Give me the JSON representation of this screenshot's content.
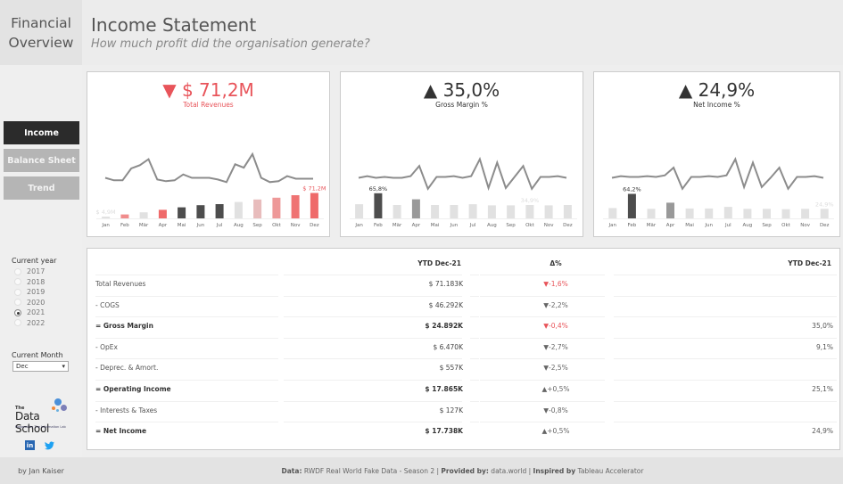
{
  "app": {
    "section_title_line1": "Financial",
    "section_title_line2": "Overview",
    "page_title": "Income Statement",
    "page_subtitle": "How much profit did the organisation  generate?"
  },
  "nav": [
    {
      "label": "Income",
      "active": true
    },
    {
      "label": "Balance Sheet",
      "active": false
    },
    {
      "label": "Trend",
      "active": false
    }
  ],
  "filters": {
    "year_label": "Current year",
    "years": [
      "2017",
      "2018",
      "2019",
      "2020",
      "2021",
      "2022"
    ],
    "selected_year": "2021",
    "month_label": "Current Month",
    "selected_month": "Dec",
    "dropdown_arrow": "▾"
  },
  "branding": {
    "logo_small": "The",
    "logo_main": "Data School",
    "logo_powered": "Powered by The Information Lab",
    "linkedin_icon": "in",
    "twitter_icon": "🐦",
    "byline": "by Jan Kaiser"
  },
  "footer": {
    "data_label": "Data:",
    "data_value": " RWDF Real World Fake Data - Season 2 | ",
    "provided_label": "Provided by:",
    "provided_value": " data.world | ",
    "inspired_label": "Inspired by",
    "inspired_value": " Tableau Accelerator"
  },
  "colors": {
    "red": "#e8545a",
    "dark": "#333333",
    "bar_dark": "#4d4d4d",
    "bar_mid": "#999999",
    "bar_light": "#e1e1e1",
    "line": "#8c8c8c"
  },
  "kpis": [
    {
      "name": "total-revenues",
      "indicator": "▼",
      "value": "$ 71,2M",
      "label": "Total Revenues",
      "color": "#e8545a"
    },
    {
      "name": "gross-margin",
      "indicator": "▲",
      "value": "35,0%",
      "label": "Gross Margin %",
      "color": "#333333"
    },
    {
      "name": "net-income",
      "indicator": "▲",
      "value": "24,9%",
      "label": "Net Income %",
      "color": "#333333"
    }
  ],
  "chart_data": [
    {
      "type": "bar",
      "title": "Total Revenues",
      "categories": [
        "Jan",
        "Feb",
        "Mär",
        "Apr",
        "Mai",
        "Jun",
        "Jul",
        "Aug",
        "Sep",
        "Okt",
        "Nov",
        "Dez"
      ],
      "values": [
        4.9,
        11,
        17,
        24,
        31,
        37,
        40,
        46,
        53,
        58,
        65,
        71.2
      ],
      "unit": "$M (cumulative YTD)",
      "bar_colors": [
        "#e1e1e1",
        "#f08c8c",
        "#e1e1e1",
        "#ef6a6a",
        "#4d4d4d",
        "#4d4d4d",
        "#4d4d4d",
        "#e1e1e1",
        "#e8bcbc",
        "#ee9999",
        "#ef7373",
        "#ef6a6a"
      ],
      "data_labels": [
        {
          "index": 0,
          "text": "$ 4,9M",
          "color": "#dddddd"
        },
        {
          "index": 11,
          "text": "$ 71,2M",
          "color": "#e8545a"
        }
      ],
      "sparkline": [
        50,
        47,
        47,
        61,
        65,
        72,
        48,
        46,
        47,
        54,
        50,
        50,
        50,
        48,
        45,
        66,
        62,
        78,
        50,
        45,
        46,
        52,
        49,
        49,
        49
      ],
      "ylim": [
        0,
        75
      ]
    },
    {
      "type": "bar",
      "title": "Gross Margin %",
      "categories": [
        "Jan",
        "Feb",
        "Mär",
        "Apr",
        "Mai",
        "Jun",
        "Jul",
        "Aug",
        "Sep",
        "Okt",
        "Nov",
        "Dez"
      ],
      "values": [
        37,
        65.8,
        35,
        50,
        35,
        35,
        37,
        34,
        34,
        34.9,
        34,
        34.9
      ],
      "unit": "%",
      "bar_colors": [
        "#e1e1e1",
        "#4d4d4d",
        "#e1e1e1",
        "#999999",
        "#e1e1e1",
        "#e1e1e1",
        "#e1e1e1",
        "#e1e1e1",
        "#e1e1e1",
        "#e1e1e1",
        "#e1e1e1",
        "#e1e1e1"
      ],
      "data_labels": [
        {
          "index": 1,
          "text": "65,8%",
          "color": "#333333"
        },
        {
          "index": 9,
          "text": "34,9%",
          "color": "#dddddd"
        }
      ],
      "sparkline": [
        50,
        52,
        50,
        51,
        50,
        50,
        52,
        64,
        37,
        51,
        51,
        52,
        50,
        52,
        72,
        38,
        68,
        38,
        51,
        64,
        37,
        51,
        51,
        52,
        50
      ],
      "ylim": [
        0,
        70
      ]
    },
    {
      "type": "bar",
      "title": "Net Income %",
      "categories": [
        "Jan",
        "Feb",
        "Mär",
        "Apr",
        "Mai",
        "Jun",
        "Jul",
        "Aug",
        "Sep",
        "Okt",
        "Nov",
        "Dez"
      ],
      "values": [
        27,
        64.2,
        25,
        41,
        26,
        26,
        30,
        25,
        25,
        24,
        25,
        24.9
      ],
      "unit": "%",
      "bar_colors": [
        "#e1e1e1",
        "#4d4d4d",
        "#e1e1e1",
        "#999999",
        "#e1e1e1",
        "#e1e1e1",
        "#e1e1e1",
        "#e1e1e1",
        "#e1e1e1",
        "#e1e1e1",
        "#e1e1e1",
        "#e1e1e1"
      ],
      "data_labels": [
        {
          "index": 1,
          "text": "64,2%",
          "color": "#333333"
        },
        {
          "index": 11,
          "text": "24,9%",
          "color": "#dddddd"
        }
      ],
      "sparkline": [
        50,
        52,
        51,
        51,
        52,
        51,
        53,
        62,
        37,
        51,
        51,
        52,
        51,
        53,
        72,
        39,
        68,
        39,
        50,
        62,
        37,
        51,
        51,
        52,
        50
      ],
      "ylim": [
        0,
        70
      ]
    }
  ],
  "table": {
    "headers": {
      "ytd": "YTD Dec-21",
      "delta": "Δ%",
      "ytd_pct": "YTD Dec-21"
    },
    "rows": [
      {
        "label": "Total Revenues",
        "value": "$ 71.183K",
        "delta": "▼-1,6%",
        "delta_red": true,
        "pct": "",
        "bold": false
      },
      {
        "label": "- COGS",
        "value": "$ 46.292K",
        "delta": "▼-2,2%",
        "delta_red": false,
        "pct": "",
        "bold": false
      },
      {
        "label": "= Gross Margin",
        "value": "$ 24.892K",
        "delta": "▼-0,4%",
        "delta_red": true,
        "pct": "35,0%",
        "bold": true
      },
      {
        "label": "- OpEx",
        "value": "$ 6.470K",
        "delta": "▼-2,7%",
        "delta_red": false,
        "pct": "9,1%",
        "bold": false
      },
      {
        "label": "- Deprec. & Amort.",
        "value": "$ 557K",
        "delta": "▼-2,5%",
        "delta_red": false,
        "pct": "",
        "bold": false
      },
      {
        "label": "= Operating Income",
        "value": "$ 17.865K",
        "delta": "▲+0,5%",
        "delta_red": false,
        "pct": "25,1%",
        "bold": true
      },
      {
        "label": "- Interests & Taxes",
        "value": "$ 127K",
        "delta": "▼-0,8%",
        "delta_red": false,
        "pct": "",
        "bold": false
      },
      {
        "label": "= Net Income",
        "value": "$ 17.738K",
        "delta": "▲+0,5%",
        "delta_red": false,
        "pct": "24,9%",
        "bold": true
      }
    ]
  }
}
